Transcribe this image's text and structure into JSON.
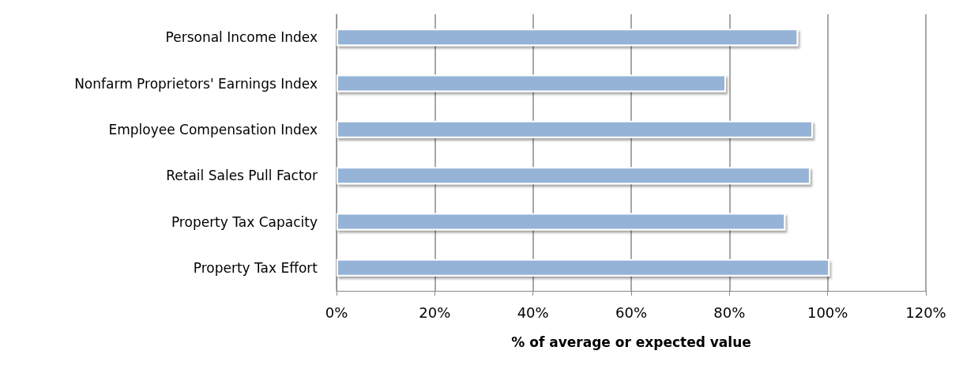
{
  "chart_data": {
    "type": "bar",
    "orientation": "horizontal",
    "xlabel": "% of average or expected value",
    "categories": [
      "Personal Income Index",
      "Nonfarm Proprietors' Earnings Index",
      "Employee Compensation Index",
      "Retail Sales Pull Factor",
      "Property Tax Capacity",
      "Property Tax Effort"
    ],
    "values": [
      94,
      79.3,
      97,
      96.5,
      91.4,
      100.4
    ],
    "color": "#95b3d7",
    "xlim": [
      0,
      120
    ],
    "xticks": [
      {
        "value": 0,
        "label": "0%"
      },
      {
        "value": 20,
        "label": "20%"
      },
      {
        "value": 40,
        "label": "40%"
      },
      {
        "value": 60,
        "label": "60%"
      },
      {
        "value": 80,
        "label": "80%"
      },
      {
        "value": 100,
        "label": "100%"
      },
      {
        "value": 120,
        "label": "120%"
      }
    ],
    "grid": "x"
  }
}
